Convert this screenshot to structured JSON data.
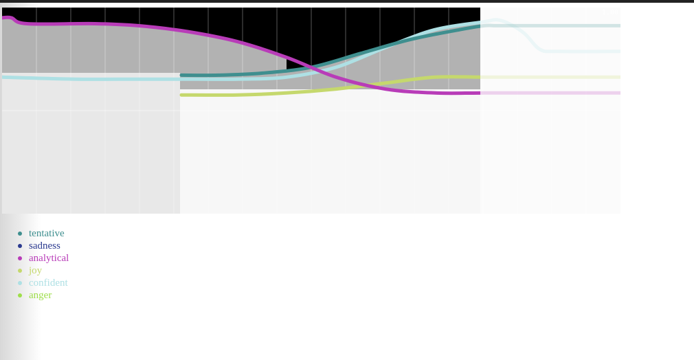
{
  "chart_data": {
    "type": "line",
    "ylim": [
      0,
      1
    ],
    "readout": "1.00",
    "series": [
      {
        "name": "tentative",
        "color": "#3f8f8f",
        "x": [
          0.29,
          0.35,
          0.42,
          0.5,
          0.58,
          0.66,
          0.74,
          0.78,
          0.8,
          0.85,
          0.9,
          1.0
        ],
        "values": [
          0.7,
          0.7,
          0.71,
          0.74,
          0.81,
          0.88,
          0.93,
          0.95,
          0.95,
          0.95,
          0.95,
          0.95
        ]
      },
      {
        "name": "sadness",
        "color": "#2b3a8f",
        "x": [],
        "values": []
      },
      {
        "name": "analytical",
        "color": "#b83cb8",
        "x": [
          0.0,
          0.015,
          0.04,
          0.15,
          0.22,
          0.3,
          0.38,
          0.46,
          0.54,
          0.62,
          0.7,
          0.78,
          0.9,
          1.0
        ],
        "values": [
          0.99,
          0.99,
          0.96,
          0.96,
          0.95,
          0.92,
          0.87,
          0.79,
          0.69,
          0.63,
          0.61,
          0.61,
          0.61,
          0.61
        ]
      },
      {
        "name": "joy",
        "color": "#c5d86d",
        "x": [
          0.29,
          0.38,
          0.46,
          0.54,
          0.62,
          0.7,
          0.78,
          0.9,
          1.0
        ],
        "values": [
          0.6,
          0.6,
          0.61,
          0.63,
          0.66,
          0.69,
          0.69,
          0.69,
          0.69
        ]
      },
      {
        "name": "confident",
        "color": "#aee0e4",
        "x": [
          0.0,
          0.12,
          0.22,
          0.29,
          0.38,
          0.46,
          0.54,
          0.62,
          0.7,
          0.78,
          0.8,
          0.82,
          0.845,
          0.87,
          0.9,
          1.0
        ],
        "values": [
          0.69,
          0.68,
          0.68,
          0.68,
          0.68,
          0.69,
          0.74,
          0.84,
          0.93,
          0.97,
          0.98,
          0.96,
          0.91,
          0.83,
          0.82,
          0.82
        ]
      },
      {
        "name": "anger",
        "color": "#9ede4a",
        "x": [],
        "values": []
      }
    ]
  }
}
